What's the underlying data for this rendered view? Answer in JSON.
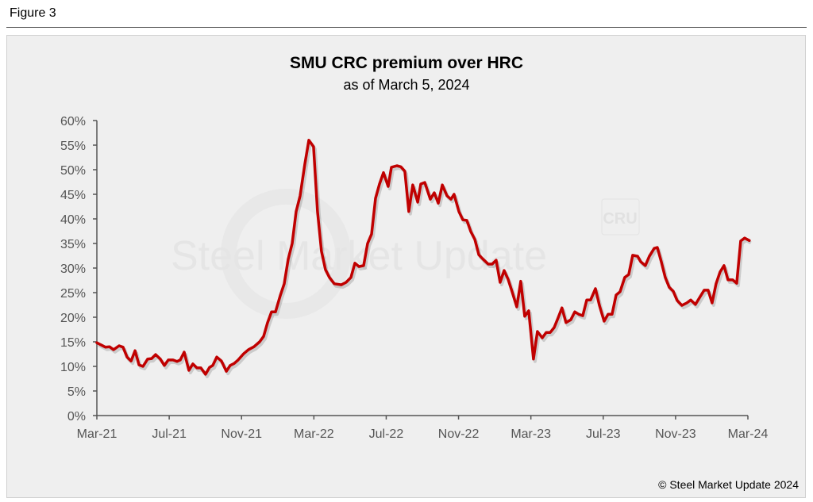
{
  "figure_label": "Figure 3",
  "footer": "© Steel Market Update 2024",
  "colors": {
    "line": "#c00000",
    "axis": "#555555",
    "panel": "#efefef"
  },
  "watermark": {
    "text": "Steel Market Update",
    "badge": "CRU"
  },
  "chart_data": {
    "type": "line",
    "title": "SMU CRC premium over HRC",
    "subtitle": "as of March 5, 2024",
    "xlabel": "",
    "ylabel": "",
    "ylim": [
      0,
      60
    ],
    "xlim_months": [
      0,
      36
    ],
    "grid": false,
    "yticks": [
      "0%",
      "5%",
      "10%",
      "15%",
      "20%",
      "25%",
      "30%",
      "35%",
      "40%",
      "45%",
      "50%",
      "55%",
      "60%"
    ],
    "xticks": [
      "Mar-21",
      "Jul-21",
      "Nov-21",
      "Mar-22",
      "Jul-22",
      "Nov-22",
      "Mar-23",
      "Jul-23",
      "Nov-23",
      "Mar-24"
    ],
    "series": [
      {
        "name": "CRC premium over HRC (%)",
        "x_unit": "months since Mar-21",
        "points": [
          [
            0,
            14.8
          ],
          [
            0.48,
            13.9
          ],
          [
            0.7,
            14.0
          ],
          [
            0.92,
            13.4
          ],
          [
            1.23,
            14.2
          ],
          [
            1.45,
            13.9
          ],
          [
            1.67,
            11.9
          ],
          [
            1.89,
            11.1
          ],
          [
            2.11,
            13.2
          ],
          [
            2.33,
            10.3
          ],
          [
            2.55,
            10.0
          ],
          [
            2.81,
            11.5
          ],
          [
            3.03,
            11.6
          ],
          [
            3.25,
            12.4
          ],
          [
            3.51,
            11.5
          ],
          [
            3.73,
            10.2
          ],
          [
            3.95,
            11.3
          ],
          [
            4.21,
            11.3
          ],
          [
            4.43,
            11.0
          ],
          [
            4.61,
            11.3
          ],
          [
            4.83,
            12.9
          ],
          [
            5.09,
            9.2
          ],
          [
            5.31,
            10.5
          ],
          [
            5.53,
            9.7
          ],
          [
            5.75,
            9.7
          ],
          [
            6.01,
            8.4
          ],
          [
            6.23,
            9.8
          ],
          [
            6.41,
            10.2
          ],
          [
            6.63,
            11.9
          ],
          [
            6.89,
            11.1
          ],
          [
            7.16,
            9.0
          ],
          [
            7.37,
            10.2
          ],
          [
            7.59,
            10.6
          ],
          [
            7.81,
            11.3
          ],
          [
            8.12,
            12.6
          ],
          [
            8.38,
            13.4
          ],
          [
            8.69,
            14.0
          ],
          [
            9.0,
            15.0
          ],
          [
            9.22,
            16.1
          ],
          [
            9.44,
            18.9
          ],
          [
            9.66,
            21.1
          ],
          [
            9.88,
            21.1
          ],
          [
            10.14,
            24.4
          ],
          [
            10.36,
            26.8
          ],
          [
            10.58,
            31.8
          ],
          [
            10.8,
            35.0
          ],
          [
            11.02,
            41.5
          ],
          [
            11.24,
            44.7
          ],
          [
            11.5,
            51.1
          ],
          [
            11.72,
            56.0
          ],
          [
            11.98,
            54.7
          ],
          [
            12.2,
            41.5
          ],
          [
            12.42,
            33.4
          ],
          [
            12.64,
            29.7
          ],
          [
            12.86,
            28.1
          ],
          [
            13.13,
            26.8
          ],
          [
            13.52,
            26.6
          ],
          [
            13.78,
            27.1
          ],
          [
            14.05,
            28.1
          ],
          [
            14.27,
            31.0
          ],
          [
            14.49,
            30.3
          ],
          [
            14.75,
            30.5
          ],
          [
            14.97,
            35.0
          ],
          [
            15.19,
            36.9
          ],
          [
            15.41,
            44.2
          ],
          [
            15.63,
            47.1
          ],
          [
            15.85,
            49.4
          ],
          [
            16.11,
            46.6
          ],
          [
            16.29,
            50.5
          ],
          [
            16.59,
            50.8
          ],
          [
            16.81,
            50.6
          ],
          [
            17.03,
            49.7
          ],
          [
            17.25,
            41.5
          ],
          [
            17.47,
            46.9
          ],
          [
            17.74,
            43.4
          ],
          [
            17.91,
            47.1
          ],
          [
            18.13,
            47.4
          ],
          [
            18.44,
            44.0
          ],
          [
            18.66,
            45.3
          ],
          [
            18.88,
            43.2
          ],
          [
            19.1,
            46.9
          ],
          [
            19.36,
            44.7
          ],
          [
            19.58,
            44.0
          ],
          [
            19.75,
            45.0
          ],
          [
            20.02,
            41.5
          ],
          [
            20.24,
            39.8
          ],
          [
            20.46,
            39.7
          ],
          [
            20.68,
            37.4
          ],
          [
            20.9,
            35.8
          ],
          [
            21.12,
            32.7
          ],
          [
            21.33,
            31.9
          ],
          [
            21.64,
            30.8
          ],
          [
            21.86,
            30.8
          ],
          [
            22.08,
            31.6
          ],
          [
            22.3,
            27.1
          ],
          [
            22.52,
            29.5
          ],
          [
            22.74,
            27.7
          ],
          [
            22.96,
            25.2
          ],
          [
            23.22,
            22.1
          ],
          [
            23.44,
            27.3
          ],
          [
            23.66,
            20.2
          ],
          [
            23.88,
            21.3
          ],
          [
            24.14,
            11.5
          ],
          [
            24.36,
            17.1
          ],
          [
            24.63,
            15.8
          ],
          [
            24.85,
            16.9
          ],
          [
            25.07,
            16.9
          ],
          [
            25.29,
            17.9
          ],
          [
            25.5,
            19.8
          ],
          [
            25.72,
            21.9
          ],
          [
            25.94,
            18.9
          ],
          [
            26.21,
            19.5
          ],
          [
            26.43,
            21.1
          ],
          [
            26.65,
            20.6
          ],
          [
            26.87,
            20.3
          ],
          [
            27.09,
            23.5
          ],
          [
            27.3,
            23.5
          ],
          [
            27.57,
            25.8
          ],
          [
            27.79,
            22.4
          ],
          [
            28.05,
            19.2
          ],
          [
            28.27,
            20.6
          ],
          [
            28.49,
            20.6
          ],
          [
            28.71,
            24.5
          ],
          [
            28.93,
            25.2
          ],
          [
            29.19,
            28.1
          ],
          [
            29.41,
            28.7
          ],
          [
            29.63,
            32.6
          ],
          [
            29.9,
            32.4
          ],
          [
            30.07,
            31.3
          ],
          [
            30.33,
            30.5
          ],
          [
            30.55,
            32.4
          ],
          [
            30.82,
            34.0
          ],
          [
            30.99,
            34.2
          ],
          [
            31.21,
            31.3
          ],
          [
            31.43,
            28.1
          ],
          [
            31.65,
            26.1
          ],
          [
            31.87,
            25.3
          ],
          [
            32.09,
            23.4
          ],
          [
            32.35,
            22.4
          ],
          [
            32.62,
            22.9
          ],
          [
            32.84,
            23.5
          ],
          [
            33.1,
            22.6
          ],
          [
            33.36,
            24.2
          ],
          [
            33.58,
            25.5
          ],
          [
            33.8,
            25.5
          ],
          [
            34.02,
            22.9
          ],
          [
            34.24,
            26.8
          ],
          [
            34.46,
            29.2
          ],
          [
            34.68,
            30.5
          ],
          [
            34.9,
            27.6
          ],
          [
            35.16,
            27.6
          ],
          [
            35.38,
            26.9
          ],
          [
            35.6,
            35.5
          ],
          [
            35.82,
            36.1
          ],
          [
            36.08,
            35.6
          ]
        ]
      }
    ]
  }
}
